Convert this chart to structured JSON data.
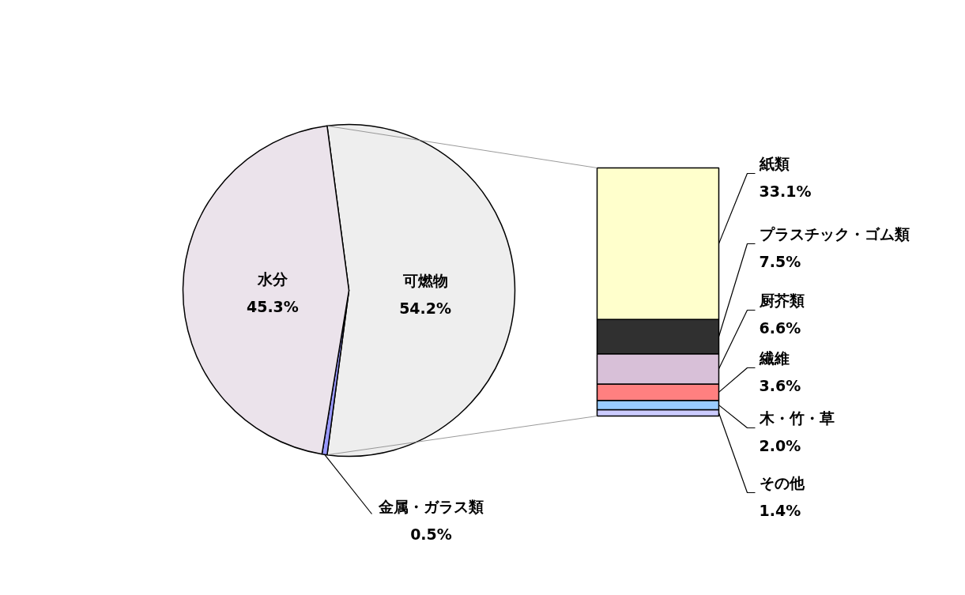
{
  "chart_data": [
    {
      "type": "pie",
      "categories": [
        "可燃物",
        "金属・ガラス類",
        "水分"
      ],
      "values": [
        54.2,
        0.5,
        45.3
      ],
      "colors": [
        "#eeeeee",
        "#9999ff",
        "#ebe3eb"
      ],
      "value_labels": [
        "54.2%",
        "0.5%",
        "45.3%"
      ]
    },
    {
      "type": "bar",
      "stacked": true,
      "tick_labels": false,
      "categories": [
        null
      ],
      "series": [
        {
          "name": "その他",
          "color": "#ccccff",
          "values": [
            1.4
          ],
          "value_labels": [
            "1.4%"
          ]
        },
        {
          "name": "木・竹・草",
          "color": "#99ccff",
          "values": [
            2.0
          ],
          "value_labels": [
            "2.0%"
          ]
        },
        {
          "name": "繊維",
          "color": "#ff8080",
          "values": [
            3.6
          ],
          "value_labels": [
            "3.6%"
          ]
        },
        {
          "name": "厨芥類",
          "color": "#d8c0d8",
          "values": [
            6.6
          ],
          "value_labels": [
            "6.6%"
          ]
        },
        {
          "name": "プラスチック・ゴム類",
          "color": "#303030",
          "values": [
            7.5
          ],
          "value_labels": [
            "7.5%"
          ]
        },
        {
          "name": "紙類",
          "color": "#ffffcc",
          "values": [
            33.1
          ],
          "value_labels": [
            "33.1%"
          ]
        }
      ]
    }
  ]
}
